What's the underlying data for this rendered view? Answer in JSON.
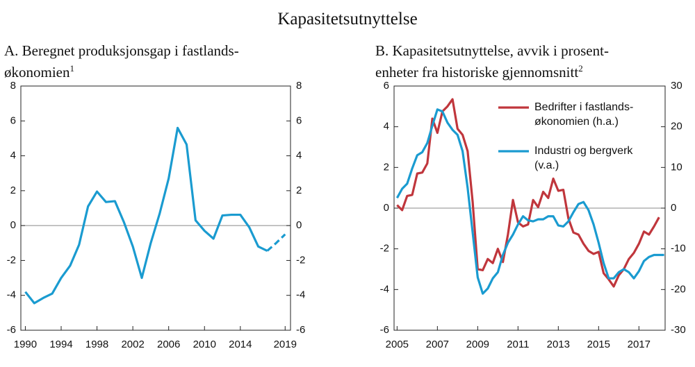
{
  "title": "Kapasitetsutnyttelse",
  "chart_data": [
    {
      "type": "line",
      "title": "A. Beregnet produksjonsgap i fastlands-\nøkonomien",
      "title_footnote": "1",
      "x": [
        1990,
        1991,
        1992,
        1993,
        1994,
        1995,
        1996,
        1997,
        1998,
        1999,
        2000,
        2001,
        2002,
        2003,
        2004,
        2005,
        2006,
        2007,
        2008,
        2009,
        2010,
        2011,
        2012,
        2013,
        2014,
        2015,
        2016,
        2017,
        2018,
        2019
      ],
      "series": [
        {
          "color": "#1a9bd0",
          "dashed": false,
          "values": [
            -3.8,
            -4.45,
            -4.15,
            -3.9,
            -3.0,
            -2.3,
            -1.1,
            1.1,
            1.95,
            1.35,
            1.4,
            0.2,
            -1.2,
            -3.0,
            -1.0,
            0.7,
            2.7,
            5.6,
            4.65,
            0.3,
            -0.3,
            -0.75,
            0.58,
            0.62,
            0.62,
            -0.1,
            -1.2,
            -1.45,
            null,
            null
          ]
        },
        {
          "color": "#1a9bd0",
          "dashed": true,
          "values": [
            null,
            null,
            null,
            null,
            null,
            null,
            null,
            null,
            null,
            null,
            null,
            null,
            null,
            null,
            null,
            null,
            null,
            null,
            null,
            null,
            null,
            null,
            null,
            null,
            null,
            null,
            null,
            -1.45,
            -1.0,
            -0.5
          ]
        }
      ],
      "xlim": [
        1989.5,
        2019.6
      ],
      "xticks": [
        1990,
        1994,
        1998,
        2002,
        2006,
        2010,
        2014,
        2019
      ],
      "ylim": [
        -6,
        8
      ],
      "yticks": [
        -6,
        -4,
        -2,
        0,
        2,
        4,
        6,
        8
      ],
      "y2lim": [
        -6,
        8
      ],
      "y2ticks": [
        -6,
        -4,
        -2,
        0,
        2,
        4,
        6,
        8
      ],
      "zero_line": 0
    },
    {
      "type": "line",
      "title": "B. Kapasitetsutnyttelse, avvik i prosent-\nenheter fra historiske gjennomsnitt",
      "title_footnote": "2",
      "x": [
        2005,
        2005.25,
        2005.5,
        2005.75,
        2006,
        2006.25,
        2006.5,
        2006.75,
        2007,
        2007.25,
        2007.5,
        2007.75,
        2008,
        2008.25,
        2008.5,
        2008.75,
        2009,
        2009.25,
        2009.5,
        2009.75,
        2010,
        2010.25,
        2010.5,
        2010.75,
        2011,
        2011.25,
        2011.5,
        2011.75,
        2012,
        2012.25,
        2012.5,
        2012.75,
        2013,
        2013.25,
        2013.5,
        2013.75,
        2014,
        2014.25,
        2014.5,
        2014.75,
        2015,
        2015.25,
        2015.5,
        2015.75,
        2016,
        2016.25,
        2016.5,
        2016.75,
        2017,
        2017.25,
        2017.5,
        2017.75,
        2018,
        2018.25
      ],
      "series": [
        {
          "name": "Bedrifter i fastlands-\nøkonomien (h.a.)",
          "color": "#c0363c",
          "axis": "y2",
          "values": [
            0.75,
            -0.5,
            3,
            3.25,
            8.5,
            8.75,
            11,
            22,
            18.5,
            23.75,
            25,
            26.75,
            19.5,
            18,
            14,
            1.5,
            -15,
            -15.25,
            -12.5,
            -13.5,
            -10,
            -13.25,
            -6.5,
            2,
            -3.5,
            -4.5,
            -4,
            2,
            0.25,
            4,
            2.5,
            7.25,
            4.25,
            4.5,
            -2.5,
            -6,
            -6.5,
            -8.75,
            -10.5,
            -11.25,
            -10.75,
            -16,
            -17.5,
            -19.25,
            -16.5,
            -15,
            -12.5,
            -11,
            -8.75,
            -5.75,
            -6.5,
            -4.5,
            -2.25,
            null
          ]
        },
        {
          "name": "Industri og bergverk\n(v.a.)",
          "color": "#1a9bd0",
          "values": [
            0.5,
            0.95,
            1.2,
            1.95,
            2.6,
            2.75,
            3.2,
            4.05,
            4.85,
            4.75,
            4.2,
            3.85,
            3.6,
            2.8,
            1.0,
            -1.2,
            -3.4,
            -4.2,
            -3.95,
            -3.45,
            -3.15,
            -2.3,
            -1.7,
            -1.3,
            -0.8,
            -0.4,
            -0.6,
            -0.65,
            -0.55,
            -0.55,
            -0.4,
            -0.4,
            -0.85,
            -0.9,
            -0.65,
            -0.2,
            0.2,
            0.3,
            -0.1,
            -0.8,
            -1.7,
            -2.7,
            -3.45,
            -3.45,
            -3.15,
            -3.0,
            -3.15,
            -3.45,
            -3.1,
            -2.6,
            -2.4,
            -2.3,
            -2.3,
            -2.3
          ]
        }
      ],
      "xlim": [
        2004.85,
        2018.3
      ],
      "xticks": [
        2005,
        2007,
        2009,
        2011,
        2013,
        2015,
        2017
      ],
      "ylim": [
        -6,
        6
      ],
      "yticks": [
        -6,
        -4,
        -2,
        0,
        2,
        4,
        6
      ],
      "y2lim": [
        -30,
        30
      ],
      "y2ticks": [
        -30,
        -20,
        -10,
        0,
        10,
        20,
        30
      ],
      "zero_line": 0,
      "legend": "upper right"
    }
  ]
}
